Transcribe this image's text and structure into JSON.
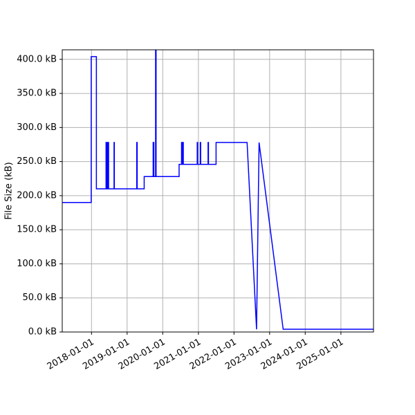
{
  "chart_data": {
    "type": "line",
    "title": "",
    "xlabel": "",
    "ylabel": "File Size (kB)",
    "grid": true,
    "line_color": "#0000ff",
    "xlim": [
      "2017-03-07",
      "2025-12-01"
    ],
    "ylim": [
      0,
      414
    ],
    "x_ticks": [
      "2018-01-01",
      "2019-01-01",
      "2020-01-01",
      "2021-01-01",
      "2022-01-01",
      "2023-01-01",
      "2024-01-01",
      "2025-01-01"
    ],
    "y_ticks": [
      0,
      50,
      100,
      150,
      200,
      250,
      300,
      350,
      400
    ],
    "y_tick_labels": [
      "0.0 kB",
      "50.0 kB",
      "100.0 kB",
      "150.0 kB",
      "200.0 kB",
      "250.0 kB",
      "300.0 kB",
      "350.0 kB",
      "400.0 kB"
    ],
    "series": [
      {
        "x": [
          "2017-03-07",
          "2017-12-29",
          "2017-12-29",
          "2018-02-20",
          "2018-02-20",
          "2018-05-30",
          "2018-05-30",
          "2018-06-02",
          "2018-06-02",
          "2018-06-10",
          "2018-06-10",
          "2018-06-13",
          "2018-06-13",
          "2018-06-20",
          "2018-06-20",
          "2018-06-25",
          "2018-06-25",
          "2018-08-20",
          "2018-08-20",
          "2018-08-23",
          "2018-08-23",
          "2019-04-10",
          "2019-04-10",
          "2019-04-14",
          "2019-04-14",
          "2019-06-25",
          "2019-06-25",
          "2019-09-25",
          "2019-09-25",
          "2019-10-02",
          "2019-10-02",
          "2019-10-20",
          "2019-10-20",
          "2019-10-25",
          "2019-10-25",
          "2020-06-17",
          "2020-06-17",
          "2020-07-12",
          "2020-07-12",
          "2020-07-16",
          "2020-07-16",
          "2020-07-25",
          "2020-07-25",
          "2020-07-30",
          "2020-07-30",
          "2020-12-20",
          "2020-12-20",
          "2020-12-24",
          "2020-12-24",
          "2021-01-20",
          "2021-01-20",
          "2021-01-24",
          "2021-01-24",
          "2021-04-10",
          "2021-04-10",
          "2021-04-14",
          "2021-04-14",
          "2021-07-01",
          "2021-07-01",
          "2022-05-15",
          "2022-08-20",
          "2022-08-20",
          "2022-09-15",
          "2022-09-15",
          "2023-05-20",
          "2023-05-20",
          "2025-12-01"
        ],
        "y": [
          190,
          190,
          404,
          404,
          210,
          210,
          278,
          278,
          210,
          210,
          278,
          278,
          210,
          210,
          278,
          278,
          210,
          210,
          278,
          278,
          210,
          210,
          278,
          278,
          210,
          210,
          228,
          228,
          278,
          278,
          228,
          228,
          414,
          414,
          228,
          228,
          246,
          246,
          278,
          278,
          246,
          246,
          278,
          278,
          246,
          246,
          278,
          278,
          246,
          246,
          278,
          278,
          246,
          246,
          278,
          278,
          246,
          246,
          278,
          278,
          4,
          4,
          278,
          278,
          4,
          4,
          4
        ]
      }
    ]
  }
}
